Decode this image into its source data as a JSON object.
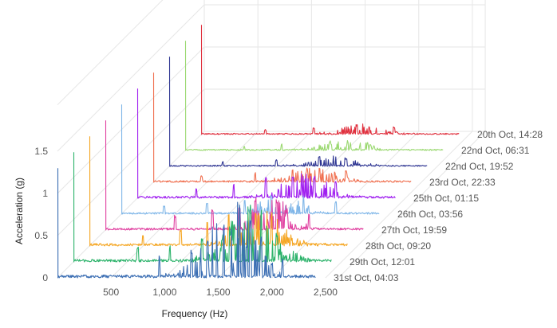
{
  "chart_data": {
    "type": "line",
    "style": "3d-waterfall",
    "xlabel": "Frequency (Hz)",
    "ylabel": "Acceleration (g)",
    "x_ticks": [
      "500",
      "1,000",
      "1,500",
      "2,000",
      "2,500"
    ],
    "x_tick_values": [
      500,
      1000,
      1500,
      2000,
      2500
    ],
    "y_ticks": [
      "0",
      "0.5",
      "1",
      "1.5"
    ],
    "y_tick_values": [
      0,
      0.5,
      1,
      1.5
    ],
    "xlim": [
      0,
      2560
    ],
    "ylim": [
      0,
      1.5
    ],
    "grid": true,
    "legend": "none",
    "series": [
      {
        "name": "31st Oct, 04:03",
        "color": "#3b6eb3",
        "noise": 0.035,
        "burst_center": 1600,
        "burst_width": 300,
        "burst_height": 0.95,
        "peaks": [
          [
            950,
            0.28
          ],
          [
            1250,
            0.35
          ],
          [
            1400,
            0.45
          ],
          [
            1550,
            0.7
          ],
          [
            1700,
            0.95
          ],
          [
            1800,
            0.75
          ],
          [
            1900,
            0.5
          ],
          [
            2100,
            0.25
          ]
        ]
      },
      {
        "name": "29th Oct, 12:01",
        "color": "#2db36b",
        "noise": 0.03,
        "burst_center": 1650,
        "burst_width": 300,
        "burst_height": 0.7,
        "peaks": [
          [
            600,
            0.18
          ],
          [
            900,
            0.2
          ],
          [
            1200,
            0.3
          ],
          [
            1500,
            0.45
          ],
          [
            1650,
            0.7
          ],
          [
            1750,
            0.65
          ],
          [
            1900,
            0.35
          ]
        ]
      },
      {
        "name": "28th Oct, 09:20",
        "color": "#f5a623",
        "noise": 0.03,
        "burst_center": 1600,
        "burst_width": 280,
        "burst_height": 0.45,
        "peaks": [
          [
            500,
            0.15
          ],
          [
            850,
            0.2
          ],
          [
            1100,
            0.28
          ],
          [
            1300,
            0.4
          ],
          [
            1550,
            0.45
          ],
          [
            1700,
            0.4
          ]
        ]
      },
      {
        "name": "27th Oct, 19:59",
        "color": "#e040a0",
        "noise": 0.025,
        "burst_center": 1550,
        "burst_width": 250,
        "burst_height": 0.4,
        "peaks": [
          [
            650,
            0.18
          ],
          [
            1000,
            0.25
          ],
          [
            1250,
            0.3
          ],
          [
            1400,
            0.4
          ],
          [
            1600,
            0.35
          ],
          [
            1900,
            0.2
          ]
        ]
      },
      {
        "name": "26th Oct, 03:56",
        "color": "#7fb6e8",
        "noise": 0.02,
        "burst_center": 1500,
        "burst_width": 250,
        "burst_height": 0.25,
        "peaks": [
          [
            400,
            0.1
          ],
          [
            800,
            0.15
          ],
          [
            1150,
            0.18
          ],
          [
            1400,
            0.25
          ],
          [
            1700,
            0.22
          ],
          [
            2000,
            0.15
          ]
        ]
      },
      {
        "name": "25th Oct, 01:15",
        "color": "#a020f0",
        "noise": 0.025,
        "burst_center": 1550,
        "burst_width": 280,
        "burst_height": 0.3,
        "peaks": [
          [
            550,
            0.12
          ],
          [
            900,
            0.18
          ],
          [
            1200,
            0.25
          ],
          [
            1450,
            0.3
          ],
          [
            1650,
            0.28
          ],
          [
            1850,
            0.2
          ]
        ]
      },
      {
        "name": "23rd Oct, 22:33",
        "color": "#f07050",
        "noise": 0.02,
        "burst_center": 1500,
        "burst_width": 280,
        "burst_height": 0.18,
        "peaks": [
          [
            450,
            0.08
          ],
          [
            950,
            0.12
          ],
          [
            1300,
            0.15
          ],
          [
            1550,
            0.18
          ],
          [
            1800,
            0.14
          ]
        ]
      },
      {
        "name": "22nd Oct, 19:52",
        "color": "#2e3592",
        "noise": 0.015,
        "burst_center": 1550,
        "burst_width": 250,
        "burst_height": 0.12,
        "peaks": [
          [
            500,
            0.06
          ],
          [
            1000,
            0.08
          ],
          [
            1400,
            0.12
          ],
          [
            1650,
            0.1
          ]
        ]
      },
      {
        "name": "22nd Oct, 06:31",
        "color": "#9ad870",
        "noise": 0.015,
        "burst_center": 1500,
        "burst_width": 280,
        "burst_height": 0.12,
        "peaks": [
          [
            550,
            0.05
          ],
          [
            900,
            0.08
          ],
          [
            1350,
            0.12
          ],
          [
            1700,
            0.1
          ]
        ]
      },
      {
        "name": "20th Oct, 14:28",
        "color": "#e0303e",
        "noise": 0.015,
        "burst_center": 1500,
        "burst_width": 280,
        "burst_height": 0.12,
        "peaks": [
          [
            600,
            0.06
          ],
          [
            1050,
            0.08
          ],
          [
            1450,
            0.12
          ],
          [
            1800,
            0.1
          ]
        ]
      }
    ]
  }
}
